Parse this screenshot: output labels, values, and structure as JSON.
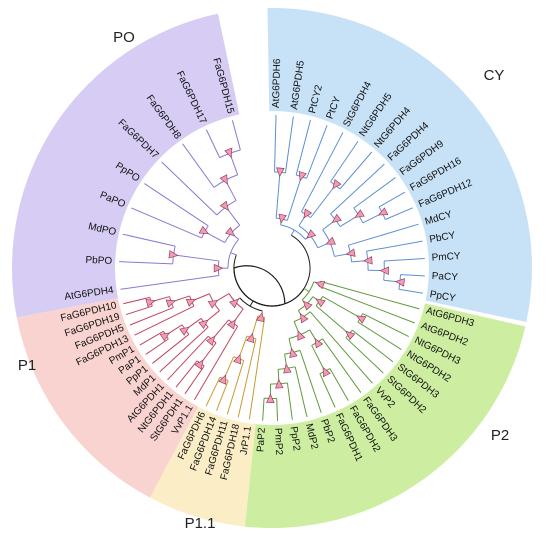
{
  "clades": [
    {
      "id": "PO",
      "label": "PO",
      "color": "#d6ccf4",
      "line": "#8a78d0"
    },
    {
      "id": "CY",
      "label": "CY",
      "color": "#c7e1f7",
      "line": "#5b8fd6"
    },
    {
      "id": "P2",
      "label": "P2",
      "color": "#cdeea0",
      "line": "#5f9a3a"
    },
    {
      "id": "P1.1",
      "label": "P1.1",
      "color": "#fbeec7",
      "line": "#c89b2f"
    },
    {
      "id": "P1",
      "label": "P1",
      "color": "#f9d3d0",
      "line": "#c0465a"
    }
  ],
  "leaves": [
    {
      "label": "AtG6PDH6",
      "clade": "CY"
    },
    {
      "label": "AtG6PDH5",
      "clade": "CY"
    },
    {
      "label": "PtCY2",
      "clade": "CY"
    },
    {
      "label": "PtCY",
      "clade": "CY"
    },
    {
      "label": "StG6PDH4",
      "clade": "CY"
    },
    {
      "label": "NtG6PDH5",
      "clade": "CY"
    },
    {
      "label": "NtG6PDH4",
      "clade": "CY"
    },
    {
      "label": "FaG6PDH4",
      "clade": "CY"
    },
    {
      "label": "FaG6PDH9",
      "clade": "CY"
    },
    {
      "label": "FaG6PDH16",
      "clade": "CY"
    },
    {
      "label": "FaG6PDH12",
      "clade": "CY"
    },
    {
      "label": "MdCY",
      "clade": "CY"
    },
    {
      "label": "PbCY",
      "clade": "CY"
    },
    {
      "label": "PmCY",
      "clade": "CY"
    },
    {
      "label": "PaCY",
      "clade": "CY"
    },
    {
      "label": "PpCY",
      "clade": "CY"
    },
    {
      "label": "AtG6PDH3",
      "clade": "P2"
    },
    {
      "label": "AtG6PDH2",
      "clade": "P2"
    },
    {
      "label": "NtG6PDH3",
      "clade": "P2"
    },
    {
      "label": "NtG6PDH2",
      "clade": "P2"
    },
    {
      "label": "StG6PDH3",
      "clade": "P2"
    },
    {
      "label": "StG6PDH2",
      "clade": "P2"
    },
    {
      "label": "VvP2",
      "clade": "P2"
    },
    {
      "label": "FaG6PDH3",
      "clade": "P2"
    },
    {
      "label": "FaG6PDH2",
      "clade": "P2"
    },
    {
      "label": "FaG6PDH1",
      "clade": "P2"
    },
    {
      "label": "PbP2",
      "clade": "P2"
    },
    {
      "label": "MdP2",
      "clade": "P2"
    },
    {
      "label": "PpP2",
      "clade": "P2"
    },
    {
      "label": "PmP2",
      "clade": "P2"
    },
    {
      "label": "PaP2",
      "clade": "P2"
    },
    {
      "label": "JrP1.1",
      "clade": "P1.1"
    },
    {
      "label": "FaG6PDH18",
      "clade": "P1.1"
    },
    {
      "label": "FaG6PDH11",
      "clade": "P1.1"
    },
    {
      "label": "FaG6PDH14",
      "clade": "P1.1"
    },
    {
      "label": "FaG6PDH6",
      "clade": "P1.1"
    },
    {
      "label": "VvP1.1",
      "clade": "P1"
    },
    {
      "label": "StG6PDH1",
      "clade": "P1"
    },
    {
      "label": "NtG6PDH1",
      "clade": "P1"
    },
    {
      "label": "AtG6PDH1",
      "clade": "P1"
    },
    {
      "label": "MdP1",
      "clade": "P1"
    },
    {
      "label": "PpP1",
      "clade": "P1"
    },
    {
      "label": "PaP1",
      "clade": "P1"
    },
    {
      "label": "PmP1",
      "clade": "P1"
    },
    {
      "label": "FaG6PDH13",
      "clade": "P1"
    },
    {
      "label": "FaG6PDH5",
      "clade": "P1"
    },
    {
      "label": "FaG6PDH19",
      "clade": "P1"
    },
    {
      "label": "FaG6PDH10",
      "clade": "P1"
    },
    {
      "label": "AtG6PDH4",
      "clade": "PO"
    },
    {
      "label": "PbPO",
      "clade": "PO"
    },
    {
      "label": "MdPO",
      "clade": "PO"
    },
    {
      "label": "PaPO",
      "clade": "PO"
    },
    {
      "label": "PpPO",
      "clade": "PO"
    },
    {
      "label": "FaG6PDH7",
      "clade": "PO"
    },
    {
      "label": "FaG6PDH8",
      "clade": "PO"
    },
    {
      "label": "FaG6PDH17",
      "clade": "PO"
    },
    {
      "label": "FaG6PDH15",
      "clade": "PO"
    }
  ]
}
